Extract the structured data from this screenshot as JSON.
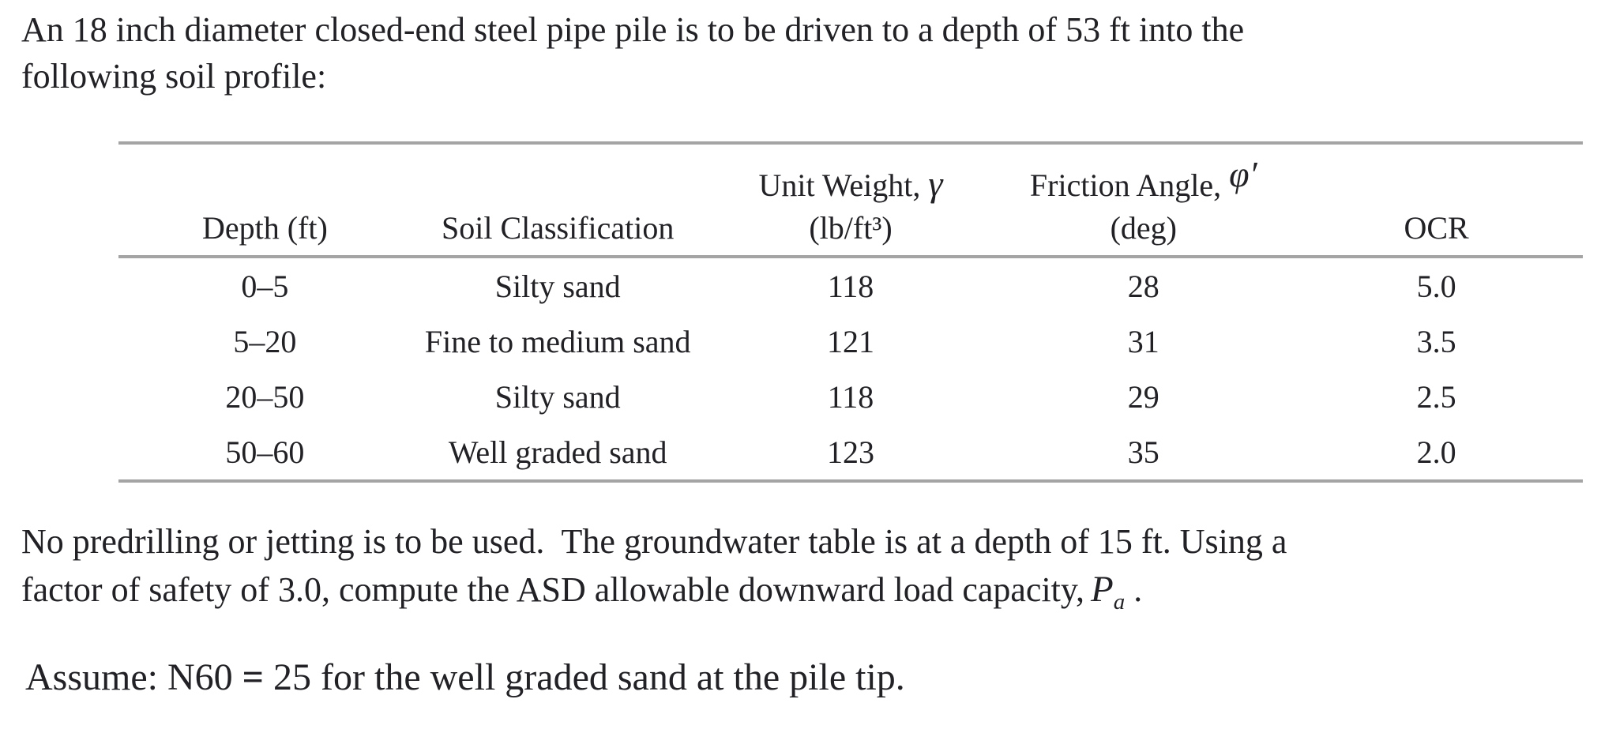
{
  "page": {
    "background": "#ffffff",
    "text_color": "#212126",
    "rule_color": "#a4a4a4"
  },
  "intro": {
    "line1": "An 18 inch diameter closed-end steel pipe pile is to be driven to a depth of 53 ft into the",
    "line2": "following soil profile:"
  },
  "table": {
    "header": {
      "col1": {
        "line2": "Depth (ft)"
      },
      "col2": {
        "line2": "Soil Classification"
      },
      "col3": {
        "line1_label": "Unit Weight, ",
        "line1_symbol": "γ",
        "line2": "(lb/ft³)"
      },
      "col4": {
        "line1_label": "Friction Angle, ",
        "line1_symbol": "φ′",
        "line2": "(deg)"
      },
      "col5": {
        "line2": "OCR"
      }
    },
    "rows": [
      {
        "depth": "0–5",
        "soil": "Silty sand",
        "unit_weight": "118",
        "friction_angle": "28",
        "ocr": "5.0"
      },
      {
        "depth": "5–20",
        "soil": "Fine to medium sand",
        "unit_weight": "121",
        "friction_angle": "31",
        "ocr": "3.5"
      },
      {
        "depth": "20–50",
        "soil": "Silty sand",
        "unit_weight": "118",
        "friction_angle": "29",
        "ocr": "2.5"
      },
      {
        "depth": "50–60",
        "soil": "Well graded sand",
        "unit_weight": "123",
        "friction_angle": "35",
        "ocr": "2.0"
      }
    ]
  },
  "body": {
    "line1": "No predrilling or jetting is to be used.  The groundwater table is at a depth of 15 ft. Using a",
    "line2_text": "factor of safety of 3.0, compute the ASD allowable downward load capacity,",
    "capacity_symbol_base": "P",
    "capacity_symbol_sub": "a",
    "line2_end": " ."
  },
  "assumption": {
    "prefix": "Assume: N60 ",
    "equals_sign": "=",
    "suffix": " 25 for the well graded sand at the pile tip."
  }
}
